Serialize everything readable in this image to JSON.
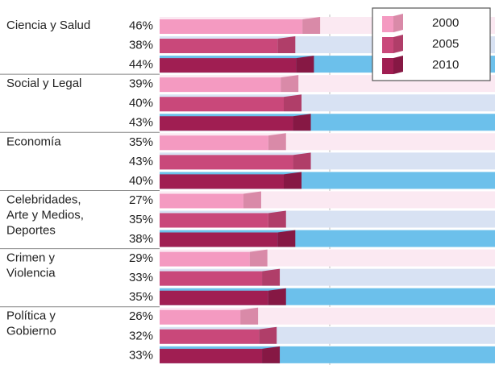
{
  "chart_data": {
    "type": "bar3d-horizontal",
    "categories": [
      [
        "Ciencia y Salud"
      ],
      [
        "Social y Legal"
      ],
      [
        "Economía"
      ],
      [
        "Celebridades,",
        "Arte y Medios,",
        "Deportes"
      ],
      [
        "Crimen y",
        "Violencia"
      ],
      [
        "Política y",
        "Gobierno"
      ]
    ],
    "series": [
      {
        "name": "2000",
        "color": "#f49ac1",
        "side": "#d98aa8",
        "stripe": "#fbe9f2",
        "values": [
          46,
          39,
          35,
          27,
          29,
          26
        ],
        "value_labels": [
          "46%",
          "39%",
          "35%",
          "27%",
          "29%",
          "26%"
        ]
      },
      {
        "name": "2005",
        "color": "#c9487a",
        "side": "#b03e69",
        "stripe": "#d8e2f3",
        "values": [
          38,
          40,
          43,
          35,
          33,
          32
        ],
        "value_labels": [
          "38%",
          "40%",
          "43%",
          "35%",
          "33%",
          "32%"
        ]
      },
      {
        "name": "2010",
        "color": "#a01e52",
        "side": "#861844",
        "stripe": "#6cc0eb",
        "values": [
          44,
          43,
          40,
          38,
          35,
          33
        ],
        "value_labels": [
          "44%",
          "43%",
          "40%",
          "38%",
          "35%",
          "33%"
        ]
      }
    ]
  }
}
